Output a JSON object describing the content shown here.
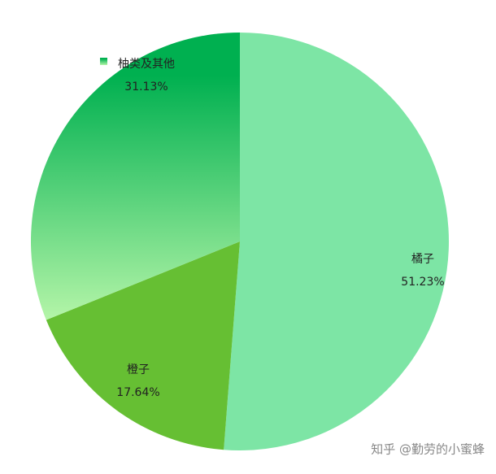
{
  "chart_data": {
    "type": "pie",
    "categories": [
      "橘子",
      "橙子",
      "柚类及其他"
    ],
    "values": [
      51.23,
      17.64,
      31.13
    ],
    "value_labels": [
      "51.23%",
      "17.64%",
      "31.13%"
    ],
    "colors": [
      "#7de5a5",
      "#66bf33",
      "#00b050"
    ]
  },
  "watermark": "知乎 @勤劳的小蜜蜂"
}
